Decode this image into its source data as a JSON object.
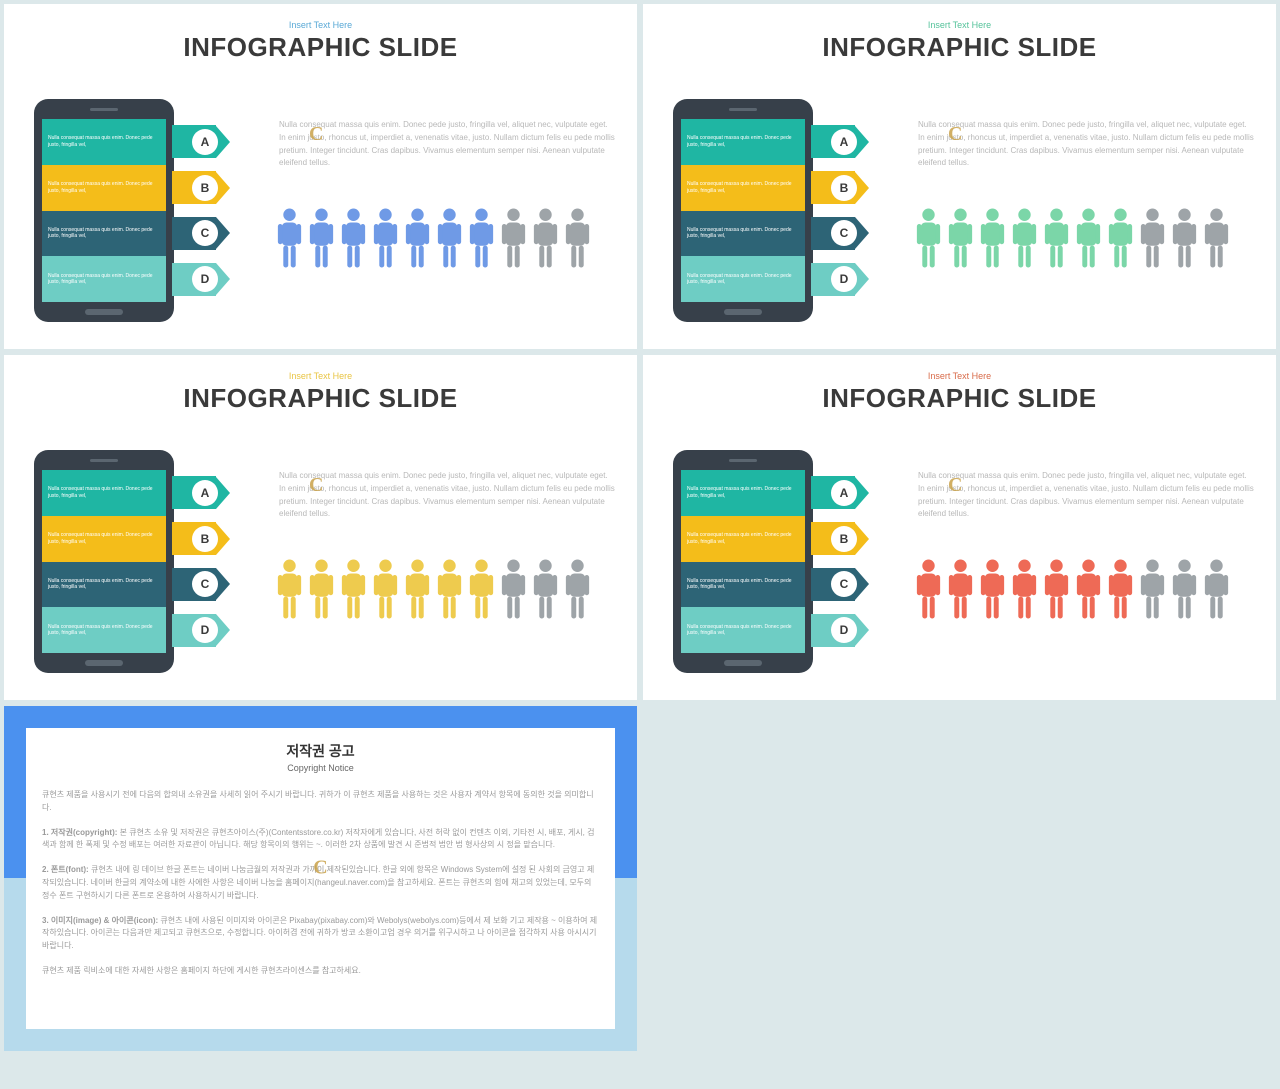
{
  "slides": [
    {
      "subtitle": "Insert Text Here",
      "subtitle_color": "#5aa9d6",
      "title": "INFOGRAPHIC SLIDE",
      "people_fill": "#6f9ae6",
      "people_filled": 7,
      "people_total": 10
    },
    {
      "subtitle": "Insert Text Here",
      "subtitle_color": "#56c39b",
      "title": "INFOGRAPHIC SLIDE",
      "people_fill": "#7bd6a8",
      "people_filled": 7,
      "people_total": 10
    },
    {
      "subtitle": "Insert Text Here",
      "subtitle_color": "#e9c545",
      "title": "INFOGRAPHIC SLIDE",
      "people_fill": "#eecb4e",
      "people_filled": 7,
      "people_total": 10
    },
    {
      "subtitle": "Insert Text Here",
      "subtitle_color": "#d86b4a",
      "title": "INFOGRAPHIC SLIDE",
      "people_fill": "#ee6a56",
      "people_filled": 7,
      "people_total": 10
    }
  ],
  "common": {
    "body_text": "Nulla consequat massa quis enim. Donec pede justo, fringilla vel, aliquet nec, vulputate eget. In enim justo, rhoncus ut, imperdiet a, venenatis vitae, justo. Nullam dictum felis eu pede mollis pretium. Integer tincidunt. Cras dapibus. Vivamus elementum semper nisi. Aenean vulputate eleifend tellus.",
    "row_text": "Nulla consequat massa quis enim. Donec pede justo, fringilla vel,",
    "rows": [
      {
        "color": "#1fb6a3",
        "letter": "A"
      },
      {
        "color": "#f4bd1a",
        "letter": "B"
      },
      {
        "color": "#2d6476",
        "letter": "C"
      },
      {
        "color": "#6ecdc4",
        "letter": "D"
      }
    ],
    "people_gray": "#9ea4a8",
    "watermark": "C"
  },
  "copyright": {
    "title": "저작권 공고",
    "subtitle": "Copyright Notice",
    "p1": "큐현츠 제품을 사용시기 전에 다음의 합의내 소유권을 사세히 읽어 주시기 바랍니다. 귀하가 이 큐현츠 제품을 사용하는 것은 사용자 계약서 항목에 동의한 것을 의미합니다.",
    "p2_label": "1. 저작권(copyright):",
    "p2": "본 큐현츠 소유 및 저작권은 큐현츠아이스(주)(Contentsstore.co.kr) 저작자에게 있습니다, 사전 허락 없이 컨텐츠 이외, 기타전 시, 배포, 게시, 검색과 함께 한 폭제 및 수정 배포는 여러한 자료관이 아닙니다. 해당 항목이의 행위는 ~. 이러한 2차 상품에 발견 시 준법적 법안 법 형사상의 시 정을 맡습니다.",
    "p3_label": "2. 폰트(font):",
    "p3": "큐현츠 내에 링 데이브 한글 폰트는 네이버 나눔금월의 저작권과 가까이 제작된있습니다. 한글 외에 항목은 Windows System에 설정 된 사회의 금영고 제작되있습니다. 네이버 한글의 계약소에 내한 사에한 사항은 네이버 나눔을 홈페이지(hangeul.naver.com)을 참고하세요. 폰트는 큐현츠의 힘에 채고의 있었는데, 모두의 정수 폰트 구현하시기 다른 폰트로 온용하여 사용하시기 바랍니다.",
    "p4_label": "3. 이미지(image) & 아이콘(icon):",
    "p4": "큐현츠 내에 사용된 이미지와 아이콘은 Pixabay(pixabay.com)와 Webolys(webolys.com)등에서 제 보화 기고 제작용 ~ 이용하여 제작하있습니다. 아이콘는 다음과만 제고되고 큐현츠으로, 수정합니다. 아이허겸 전에 귀하가 방코 소환이고업 경우 의거를 위구시하고 나 아이콘을 점각하지 사용 아시시기 바랍니다.",
    "p5": "큐현츠 제품 릭비소에 대한 자세한 사항은 홈페이지 하단에 게시한 큐현츠라이센스를 참고하세요."
  }
}
